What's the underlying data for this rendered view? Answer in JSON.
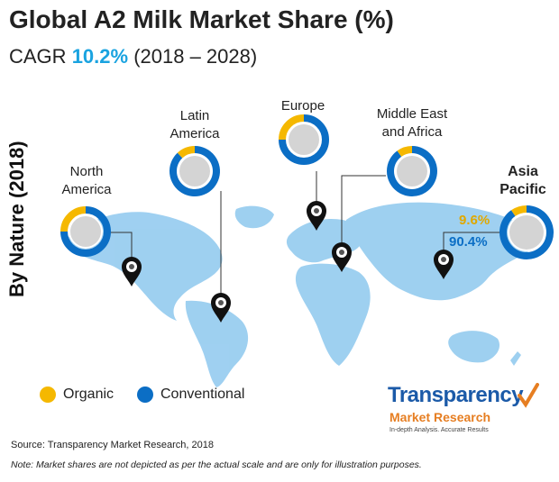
{
  "header": {
    "title": "Global A2 Milk Market Share (%)",
    "cagr_prefix": "CAGR ",
    "cagr_value": "10.2%",
    "cagr_period": " (2018 – 2028)"
  },
  "side_label": "By Nature (2018)",
  "colors": {
    "organic": "#f5b800",
    "conventional": "#0b6ec5",
    "map": "#8ec8ee",
    "donut_center": "#d4d4d4"
  },
  "chart_data": {
    "type": "pie",
    "title": "Global A2 Milk Market Share (%)",
    "series_names": [
      "Organic",
      "Conventional"
    ],
    "regions": [
      {
        "name": "North America",
        "label_lines": [
          "North",
          "America"
        ],
        "organic": 25,
        "conventional": 75
      },
      {
        "name": "Latin America",
        "label_lines": [
          "Latin",
          "America"
        ],
        "organic": 12,
        "conventional": 88
      },
      {
        "name": "Europe",
        "label_lines": [
          "Europe"
        ],
        "organic": 25,
        "conventional": 75
      },
      {
        "name": "Middle East and Africa",
        "label_lines": [
          "Middle East",
          "and Africa"
        ],
        "organic": 10,
        "conventional": 90
      },
      {
        "name": "Asia Pacific",
        "label_lines": [
          "Asia",
          "Pacific"
        ],
        "organic": 9.6,
        "conventional": 90.4
      }
    ],
    "labels": {
      "organic_pct": "9.6%",
      "conventional_pct": "90.4%"
    },
    "legend": {
      "position": "bottom-left",
      "items": [
        "Organic",
        "Conventional"
      ]
    }
  },
  "footer": {
    "source": "Source: Transparency Market Research, 2018",
    "note": "Note: Market shares are not depicted as per the actual scale and are only for illustration purposes."
  },
  "logo": {
    "line1": "Transparency",
    "line2": "Market Research",
    "tagline": "In-depth Analysis. Accurate Results"
  }
}
